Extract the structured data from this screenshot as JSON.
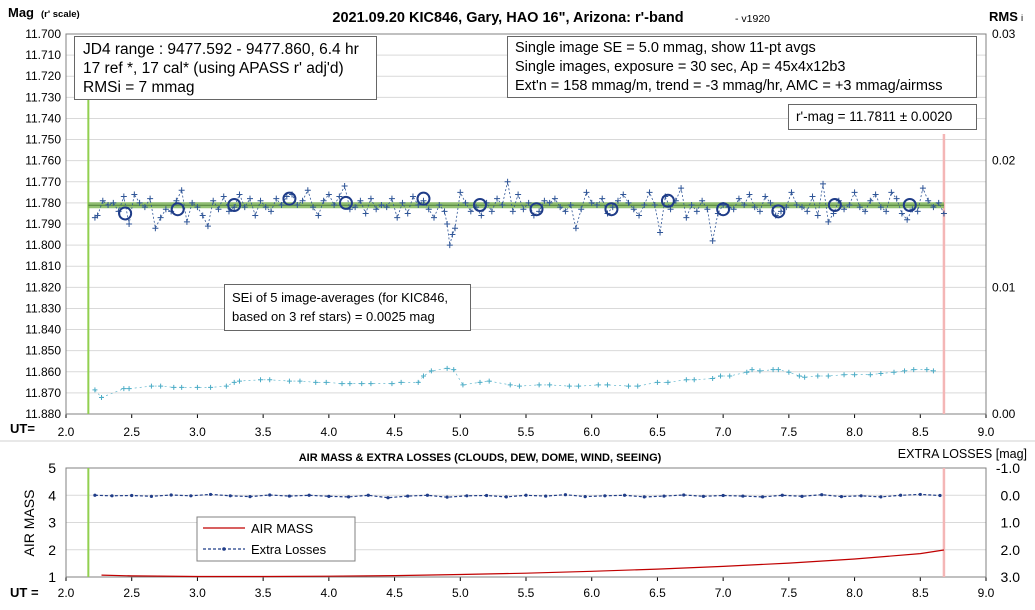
{
  "colors": {
    "grid": "#d9d9d9",
    "series": "#2f5597",
    "rms": "#4bacc6",
    "trend": "#70ad47",
    "start_line": "#92d050",
    "end_line": "#f4b6b6",
    "airmass": "#c00000",
    "losses": "#1f3c88"
  },
  "chart_data": [
    {
      "type": "scatter",
      "title": "2021.09.20 KIC846, Gary, HAO 16\", Arizona: r'-band",
      "version": "- v1920",
      "ylabel_main": "Mag",
      "ylabel_sub": "(r' scale)",
      "y2label_main": "RMS",
      "y2label_sub": "i",
      "xlabel": "UT=",
      "xlim": [
        2.0,
        9.0
      ],
      "ylim": [
        11.88,
        11.7
      ],
      "y2lim": [
        0.0,
        0.03
      ],
      "x_ticks": [
        "2.0",
        "2.5",
        "3.0",
        "3.5",
        "4.0",
        "4.5",
        "5.0",
        "5.5",
        "6.0",
        "6.5",
        "7.0",
        "7.5",
        "8.0",
        "8.5",
        "9.0"
      ],
      "y_ticks": [
        "11.700",
        "11.710",
        "11.720",
        "11.730",
        "11.740",
        "11.750",
        "11.760",
        "11.770",
        "11.780",
        "11.790",
        "11.800",
        "11.810",
        "11.820",
        "11.830",
        "11.840",
        "11.850",
        "11.860",
        "11.870",
        "11.880"
      ],
      "y2_ticks": [
        "0.03",
        "0.02",
        "0.01",
        "0.00"
      ],
      "start_ut": 2.17,
      "end_ut": 8.68,
      "mean_mag": 11.7811,
      "averages": {
        "name": "11-pt avgs",
        "x": [
          2.45,
          2.85,
          3.28,
          3.7,
          4.13,
          4.72,
          5.15,
          5.58,
          6.15,
          6.58,
          7.0,
          7.42,
          7.85,
          8.42
        ],
        "y": [
          11.785,
          11.783,
          11.781,
          11.778,
          11.78,
          11.778,
          11.781,
          11.783,
          11.783,
          11.779,
          11.783,
          11.784,
          11.781,
          11.781
        ]
      },
      "singles": {
        "name": "Single images",
        "x": [
          2.22,
          2.24,
          2.28,
          2.32,
          2.36,
          2.4,
          2.44,
          2.48,
          2.52,
          2.56,
          2.6,
          2.64,
          2.68,
          2.72,
          2.76,
          2.8,
          2.84,
          2.88,
          2.92,
          2.96,
          3.0,
          3.04,
          3.08,
          3.12,
          3.16,
          3.2,
          3.24,
          3.28,
          3.32,
          3.36,
          3.4,
          3.44,
          3.48,
          3.52,
          3.56,
          3.6,
          3.64,
          3.68,
          3.72,
          3.76,
          3.8,
          3.84,
          3.88,
          3.92,
          3.96,
          4.0,
          4.04,
          4.08,
          4.12,
          4.16,
          4.2,
          4.24,
          4.28,
          4.32,
          4.36,
          4.4,
          4.44,
          4.48,
          4.52,
          4.56,
          4.6,
          4.64,
          4.68,
          4.72,
          4.76,
          4.8,
          4.84,
          4.88,
          4.9,
          4.92,
          4.94,
          4.96,
          5.0,
          5.04,
          5.08,
          5.12,
          5.16,
          5.2,
          5.24,
          5.28,
          5.32,
          5.36,
          5.4,
          5.44,
          5.48,
          5.52,
          5.56,
          5.6,
          5.64,
          5.68,
          5.72,
          5.76,
          5.8,
          5.84,
          5.88,
          5.92,
          5.96,
          6.0,
          6.04,
          6.08,
          6.12,
          6.16,
          6.2,
          6.24,
          6.28,
          6.32,
          6.36,
          6.4,
          6.44,
          6.48,
          6.52,
          6.56,
          6.6,
          6.64,
          6.68,
          6.72,
          6.76,
          6.8,
          6.84,
          6.88,
          6.92,
          6.96,
          7.0,
          7.04,
          7.08,
          7.12,
          7.16,
          7.2,
          7.24,
          7.28,
          7.32,
          7.36,
          7.4,
          7.44,
          7.48,
          7.52,
          7.56,
          7.6,
          7.64,
          7.68,
          7.72,
          7.76,
          7.8,
          7.84,
          7.88,
          7.92,
          7.96,
          8.0,
          8.04,
          8.08,
          8.12,
          8.16,
          8.2,
          8.24,
          8.28,
          8.32,
          8.36,
          8.4,
          8.44,
          8.48,
          8.52,
          8.56,
          8.6,
          8.64,
          8.68
        ],
        "y": [
          11.787,
          11.786,
          11.779,
          11.781,
          11.78,
          11.784,
          11.777,
          11.79,
          11.776,
          11.78,
          11.782,
          11.778,
          11.792,
          11.787,
          11.783,
          11.784,
          11.779,
          11.774,
          11.789,
          11.78,
          11.782,
          11.786,
          11.791,
          11.779,
          11.783,
          11.777,
          11.784,
          11.782,
          11.776,
          11.782,
          11.778,
          11.786,
          11.779,
          11.782,
          11.784,
          11.778,
          11.781,
          11.777,
          11.776,
          11.781,
          11.779,
          11.774,
          11.782,
          11.786,
          11.779,
          11.776,
          11.781,
          11.777,
          11.772,
          11.783,
          11.782,
          11.779,
          11.785,
          11.778,
          11.783,
          11.781,
          11.782,
          11.778,
          11.787,
          11.78,
          11.785,
          11.777,
          11.781,
          11.779,
          11.783,
          11.787,
          11.781,
          11.784,
          11.79,
          11.8,
          11.795,
          11.792,
          11.775,
          11.78,
          11.784,
          11.782,
          11.786,
          11.78,
          11.784,
          11.778,
          11.781,
          11.77,
          11.784,
          11.776,
          11.783,
          11.78,
          11.786,
          11.784,
          11.779,
          11.78,
          11.778,
          11.782,
          11.784,
          11.781,
          11.792,
          11.783,
          11.775,
          11.78,
          11.781,
          11.778,
          11.785,
          11.782,
          11.779,
          11.776,
          11.78,
          11.783,
          11.786,
          11.781,
          11.775,
          11.781,
          11.794,
          11.777,
          11.783,
          11.779,
          11.773,
          11.787,
          11.781,
          11.784,
          11.779,
          11.783,
          11.798,
          11.785,
          11.781,
          11.782,
          11.783,
          11.778,
          11.781,
          11.776,
          11.782,
          11.784,
          11.777,
          11.78,
          11.786,
          11.784,
          11.782,
          11.775,
          11.781,
          11.782,
          11.784,
          11.777,
          11.786,
          11.771,
          11.789,
          11.785,
          11.779,
          11.783,
          11.781,
          11.775,
          11.782,
          11.784,
          11.779,
          11.776,
          11.782,
          11.784,
          11.775,
          11.778,
          11.785,
          11.788,
          11.783,
          11.784,
          11.773,
          11.779,
          11.782,
          11.78,
          11.785
        ]
      },
      "rms_i": {
        "name": "RMSi",
        "x": [
          2.22,
          2.27,
          2.44,
          2.48,
          2.65,
          2.72,
          2.82,
          2.88,
          3.0,
          3.1,
          3.22,
          3.28,
          3.32,
          3.48,
          3.55,
          3.7,
          3.78,
          3.9,
          3.98,
          4.1,
          4.16,
          4.25,
          4.32,
          4.48,
          4.55,
          4.68,
          4.72,
          4.78,
          4.9,
          4.95,
          5.02,
          5.15,
          5.22,
          5.38,
          5.45,
          5.6,
          5.68,
          5.83,
          5.9,
          6.05,
          6.12,
          6.28,
          6.35,
          6.5,
          6.58,
          6.72,
          6.78,
          6.92,
          6.98,
          7.05,
          7.18,
          7.22,
          7.28,
          7.38,
          7.42,
          7.5,
          7.58,
          7.62,
          7.72,
          7.8,
          7.92,
          8.0,
          8.12,
          8.2,
          8.3,
          8.38,
          8.45,
          8.55,
          8.6
        ],
        "y": [
          0.0019,
          0.0013,
          0.002,
          0.002,
          0.0022,
          0.0022,
          0.0021,
          0.0021,
          0.0021,
          0.0021,
          0.0022,
          0.0025,
          0.0026,
          0.0027,
          0.0027,
          0.0026,
          0.0026,
          0.0025,
          0.0025,
          0.0024,
          0.0024,
          0.0024,
          0.0024,
          0.0024,
          0.0025,
          0.0025,
          0.003,
          0.0034,
          0.0036,
          0.0035,
          0.0023,
          0.0025,
          0.0026,
          0.0023,
          0.0022,
          0.0023,
          0.0023,
          0.0022,
          0.0022,
          0.0023,
          0.0023,
          0.0022,
          0.0022,
          0.0025,
          0.0025,
          0.0027,
          0.0027,
          0.0028,
          0.003,
          0.003,
          0.0033,
          0.0035,
          0.0034,
          0.0035,
          0.0035,
          0.0033,
          0.003,
          0.0029,
          0.003,
          0.003,
          0.0031,
          0.0031,
          0.0031,
          0.0032,
          0.0033,
          0.0034,
          0.0035,
          0.0035,
          0.0034
        ]
      },
      "boxes": {
        "jd_range": "JD4 range : 9477.592 - 9477.860,  6.4  hr",
        "ref_cal": "17 ref *, 17 cal* (using APASS r' adj'd)",
        "rmsi": "RMSi = 7 mmag",
        "se_line": "Single image SE = 5.0 mmag, show  11-pt avgs",
        "exposure_line": "Single images, exposure = 30 sec, Ap = 45x4x12b3",
        "ext_line": "Ext'n = 158 mmag/m, trend =  -3 mmag/hr, AMC = +3 mmag/airmss",
        "rmag": "r'-mag = 11.7811 ± 0.0020",
        "sei_line1": "SEi of 5 image-averages (for KIC846,",
        "sei_line2": "based on 3 ref stars) = 0.0025 mag"
      }
    },
    {
      "type": "line",
      "title": "AIR MASS & EXTRA LOSSES (CLOUDS, DEW, DOME, WIND, SEEING)",
      "ylabel": "AIR MASS",
      "y2label": "EXTRA LOSSES [mag]",
      "xlabel": "UT =",
      "xlim": [
        2.0,
        9.0
      ],
      "ylim": [
        1,
        5
      ],
      "y2lim": [
        3.0,
        -1.0
      ],
      "x_ticks": [
        "2.0",
        "2.5",
        "3.0",
        "3.5",
        "4.0",
        "4.5",
        "5.0",
        "5.5",
        "6.0",
        "6.5",
        "7.0",
        "7.5",
        "8.0",
        "8.5",
        "9.0"
      ],
      "y_ticks": [
        "5",
        "4",
        "3",
        "2",
        "1"
      ],
      "y2_ticks": [
        "-1.0",
        "0.0",
        "1.0",
        "2.0",
        "3.0"
      ],
      "legend": [
        "AIR MASS",
        "Extra Losses"
      ],
      "airmass": {
        "name": "AIR MASS",
        "x": [
          2.27,
          2.5,
          3.0,
          3.5,
          4.0,
          4.5,
          5.0,
          5.5,
          6.0,
          6.5,
          7.0,
          7.5,
          8.0,
          8.5,
          8.68
        ],
        "y": [
          1.07,
          1.04,
          1.02,
          1.02,
          1.03,
          1.05,
          1.09,
          1.14,
          1.21,
          1.29,
          1.39,
          1.51,
          1.66,
          1.86,
          1.99
        ]
      },
      "losses": {
        "name": "Extra Losses",
        "x": [
          2.22,
          2.35,
          2.5,
          2.65,
          2.8,
          2.95,
          3.1,
          3.25,
          3.4,
          3.55,
          3.7,
          3.85,
          4.0,
          4.15,
          4.3,
          4.45,
          4.6,
          4.75,
          4.9,
          5.05,
          5.2,
          5.35,
          5.5,
          5.65,
          5.8,
          5.95,
          6.1,
          6.25,
          6.4,
          6.55,
          6.7,
          6.85,
          7.0,
          7.15,
          7.3,
          7.45,
          7.6,
          7.75,
          7.9,
          8.05,
          8.2,
          8.35,
          8.5,
          8.65
        ],
        "y": [
          0.0,
          0.02,
          0.01,
          0.04,
          -0.01,
          0.02,
          -0.03,
          0.02,
          0.05,
          -0.01,
          0.03,
          0.0,
          0.04,
          0.06,
          0.0,
          0.09,
          0.03,
          0.0,
          0.07,
          0.02,
          0.01,
          0.06,
          0.0,
          0.03,
          -0.02,
          0.05,
          0.02,
          0.0,
          0.06,
          0.03,
          -0.01,
          0.04,
          0.01,
          0.03,
          0.06,
          0.0,
          0.04,
          -0.02,
          0.05,
          0.02,
          0.06,
          0.0,
          -0.03,
          0.01
        ]
      }
    }
  ]
}
